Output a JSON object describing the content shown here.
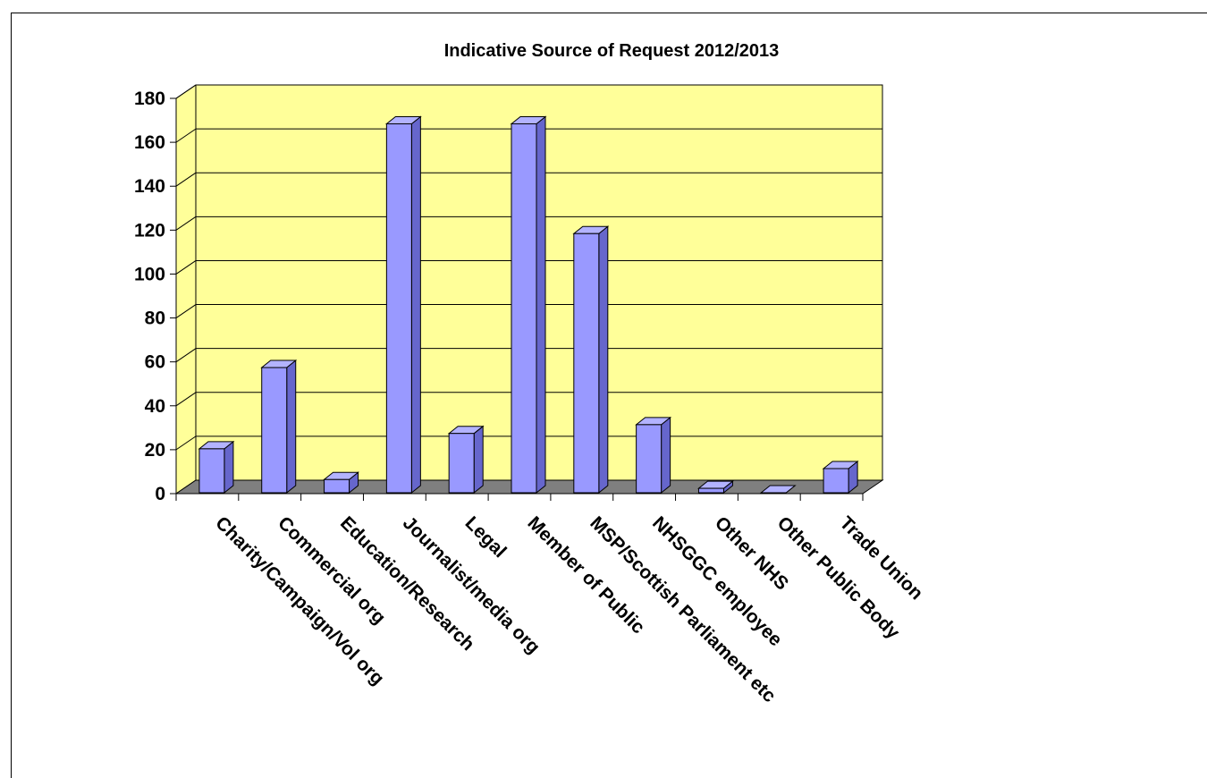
{
  "chart_data": {
    "type": "bar",
    "title": "Indicative Source of Request 2012/2013",
    "xlabel": "",
    "ylabel": "",
    "ylim": [
      0,
      180
    ],
    "yticks": [
      0,
      20,
      40,
      60,
      80,
      100,
      120,
      140,
      160,
      180
    ],
    "grid": true,
    "legend": "none",
    "categories": [
      "Charity/Campaign/Vol org",
      "Commercial org",
      "Education/Research",
      "Journalist/media org",
      "Legal",
      "Member of Public",
      "MSP/Scottish Parliament etc",
      "NHSGGC employee",
      "Other NHS",
      "Other Public Body",
      "Trade Union"
    ],
    "values": [
      20,
      57,
      6,
      168,
      27,
      168,
      118,
      31,
      2,
      0,
      11
    ],
    "colors": {
      "bar_front": "#9999ff",
      "bar_side": "#6666cc",
      "bar_top": "#b3b3ff",
      "wall": "#ffff99",
      "floor": "#7f7f7f",
      "grid": "#000000"
    }
  }
}
